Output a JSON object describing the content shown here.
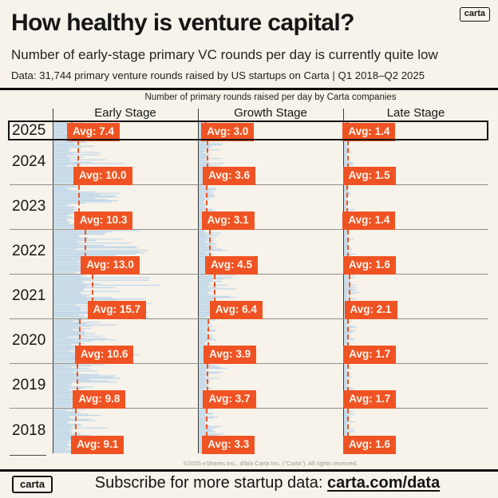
{
  "header": {
    "logo": "carta",
    "title": "How healthy is venture capital?",
    "subtitle": "Number of early-stage primary VC rounds per day is currently quite low",
    "data_note": "Data: 31,744 primary venture rounds raised by US startups on Carta | Q1 2018–Q2 2025"
  },
  "chart_data": {
    "type": "bar",
    "title": "Number of primary rounds raised per day by Carta companies",
    "orientation": "horizontal-daily-strips",
    "years": [
      "2025",
      "2024",
      "2023",
      "2022",
      "2021",
      "2020",
      "2019",
      "2018"
    ],
    "columns": [
      "Early Stage",
      "Growth Stage",
      "Late Stage"
    ],
    "series": [
      {
        "name": "Early Stage",
        "values": [
          7.4,
          10.0,
          10.3,
          13.0,
          15.7,
          10.6,
          9.8,
          9.1
        ]
      },
      {
        "name": "Growth Stage",
        "values": [
          3.0,
          3.6,
          3.1,
          4.5,
          6.4,
          3.9,
          3.7,
          3.3
        ]
      },
      {
        "name": "Late Stage",
        "values": [
          1.4,
          1.5,
          1.4,
          1.6,
          2.1,
          1.7,
          1.7,
          1.6
        ]
      }
    ],
    "avg_label_prefix": "Avg: ",
    "highlighted_year": "2025",
    "legend_position": "none",
    "grid": "row-separators",
    "colors": {
      "bar": "#a7cbe8",
      "avg": "#f05323",
      "background": "#f8f3ea",
      "text": "#161616"
    }
  },
  "footer": {
    "copyright": "©2025 eShares Inc., d/b/a Carta Inc. (\"Carta\"). All rights reserved.",
    "logo": "carta",
    "subscribe_text": "Subscribe for more startup data: ",
    "subscribe_link": "carta.com/data"
  }
}
